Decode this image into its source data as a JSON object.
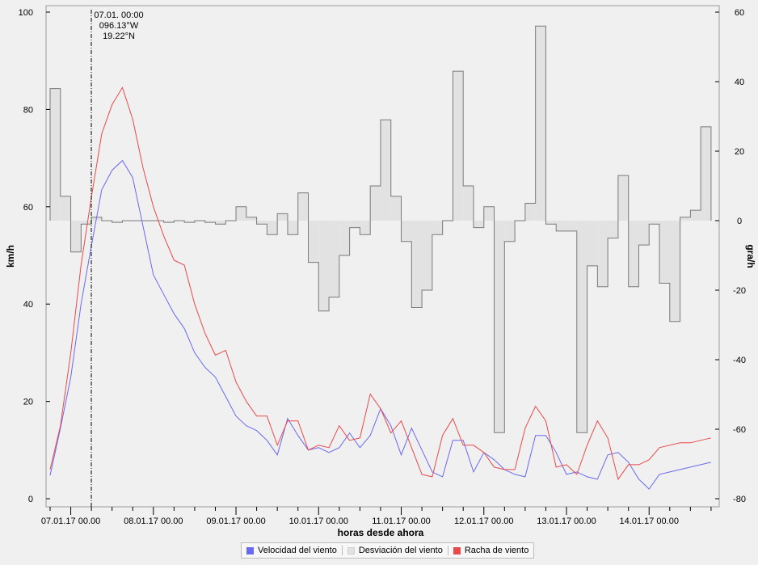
{
  "chart_data": {
    "type": "line",
    "xlabel": "horas desde ahora",
    "ylabel_left": "km/h",
    "ylabel_right": "gra/h",
    "ylim_left": [
      0,
      100
    ],
    "ylim_right": [
      -80,
      60
    ],
    "yticks_left": [
      0,
      20,
      40,
      60,
      80,
      100
    ],
    "yticks_right": [
      -80,
      -60,
      -40,
      -20,
      0,
      20,
      40,
      60
    ],
    "xlim_hours": [
      -6,
      186
    ],
    "x_tick_labels": [
      "07.01.17 00.00",
      "08.01.17 00.00",
      "09.01.17 00.00",
      "10.01.17 00.00",
      "11.01.17 00.00",
      "12.01.17 00.00",
      "13.01.17 00.00",
      "14.01.17 00.00"
    ],
    "annotation": {
      "lines": [
        "07.01. 00:00",
        "096.13°W",
        "19.22°N"
      ]
    },
    "grid": false,
    "legend_position": "bottom",
    "series": [
      {
        "name": "Velocidad del viento",
        "color": "#6a6aee",
        "axis": "left",
        "x": [
          -6,
          -3,
          0,
          3,
          6,
          9,
          12,
          15,
          18,
          21,
          24,
          27,
          30,
          33,
          36,
          39,
          42,
          45,
          48,
          51,
          54,
          57,
          60,
          63,
          66,
          69,
          72,
          75,
          78,
          81,
          84,
          87,
          90,
          93,
          96,
          99,
          102,
          105,
          108,
          111,
          114,
          117,
          120,
          123,
          126,
          129,
          132,
          135,
          138,
          141,
          144,
          147,
          150,
          153,
          156,
          159,
          162,
          165,
          168,
          171,
          174,
          177,
          180,
          183,
          186
        ],
        "values": [
          4.8,
          14.5,
          25,
          40,
          52,
          63.5,
          67.5,
          69.5,
          66,
          56,
          46,
          42,
          38,
          35,
          30,
          27,
          25,
          21,
          17,
          15,
          14,
          12,
          9,
          16.5,
          13,
          10,
          10.5,
          9.5,
          10.5,
          13.5,
          10.5,
          13,
          18.5,
          15,
          9,
          14.5,
          10,
          5.5,
          4.5,
          12,
          12,
          5.5,
          9.5,
          8,
          6,
          5,
          4.5,
          13,
          13,
          9.5,
          5,
          5.5,
          4.5,
          4,
          9,
          9.5,
          7.5,
          4,
          2,
          5,
          5.5,
          6,
          6.5,
          7,
          7.5
        ]
      },
      {
        "name": "Racha de viento",
        "color": "#e84a4a",
        "axis": "left",
        "x": [
          -6,
          -3,
          0,
          3,
          6,
          9,
          12,
          15,
          18,
          21,
          24,
          27,
          30,
          33,
          36,
          39,
          42,
          45,
          48,
          51,
          54,
          57,
          60,
          63,
          66,
          69,
          72,
          75,
          78,
          81,
          84,
          87,
          90,
          93,
          96,
          99,
          102,
          105,
          108,
          111,
          114,
          117,
          120,
          123,
          126,
          129,
          132,
          135,
          138,
          141,
          144,
          147,
          150,
          153,
          156,
          159,
          162,
          165,
          168,
          171,
          174,
          177,
          180,
          183,
          186
        ],
        "values": [
          6,
          15,
          30,
          48,
          62,
          75,
          81,
          84.5,
          78,
          68,
          60,
          54,
          49,
          48,
          40,
          34,
          29.5,
          30.5,
          24,
          20,
          17,
          17,
          11,
          16,
          16,
          10,
          11,
          10.5,
          15,
          12,
          12.5,
          21.5,
          18.5,
          13.5,
          16,
          10.5,
          5,
          4.5,
          13,
          16.5,
          11,
          11,
          9.5,
          6.5,
          6,
          6,
          14.5,
          19,
          16,
          6.5,
          7,
          5,
          11,
          16,
          12.5,
          4,
          7,
          7,
          8,
          10.5,
          11,
          11.5,
          11.5,
          12,
          12.5
        ]
      },
      {
        "name": "Desviación del viento",
        "color": "#e2e2e2",
        "axis": "right",
        "type": "step-area",
        "x_start": -6,
        "step_hours": 3,
        "values": [
          38,
          7,
          -9,
          -1,
          1,
          0,
          -0.5,
          0,
          0,
          0,
          0,
          -0.5,
          0,
          -0.5,
          0,
          -0.5,
          -1,
          0,
          4,
          1,
          -1,
          -4,
          2,
          -4,
          8,
          -12,
          -26,
          -22,
          -10,
          -2,
          -4,
          10,
          29,
          7,
          -6,
          -25,
          -20,
          -4,
          0,
          43,
          10,
          -2,
          4,
          -61,
          -6,
          0,
          5,
          56,
          -1,
          -3,
          -3,
          -61,
          -13,
          -19,
          -5,
          13,
          -19,
          -7,
          -1,
          -18,
          -29,
          1,
          3,
          27
        ]
      }
    ]
  }
}
